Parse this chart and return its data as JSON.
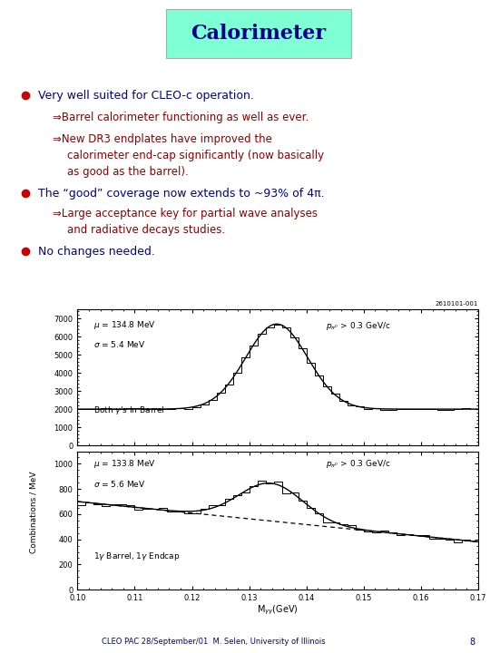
{
  "title": "Calorimeter",
  "title_color": "#00008B",
  "title_bg_color": "#7FFFD4",
  "bg_color": "#FFFFFF",
  "bullet_color": "#CC0000",
  "bullet1_text": "Very well suited for CLEO-c operation.",
  "bullet1_color": "#00008B",
  "sub1a_text": "⇒Barrel calorimeter functioning as well as ever.",
  "sub1a_color": "#8B0000",
  "sub1b_line1": "⇒New DR3 endplates have improved the",
  "sub1b_line2": "calorimeter end-cap significantly (now basically",
  "sub1b_line3": "as good as the barrel).",
  "sub1b_color": "#8B0000",
  "bullet2_text": "The “good” coverage now extends to ~93% of 4π.",
  "bullet2_color": "#00008B",
  "sub2a_line1": "⇒Large acceptance key for partial wave analyses",
  "sub2a_line2": "and radiative decays studies.",
  "sub2a_color": "#8B0000",
  "bullet3_text": "No changes needed.",
  "bullet3_color": "#00008B",
  "footer_text": "CLEO PAC 28/September/01  M. Selen, University of Illinois",
  "footer_page": "8",
  "footer_color": "#00008B",
  "plot_label_id": "2610101-001",
  "title_fontsize": 16,
  "bullet_fontsize": 9,
  "sub_fontsize": 8.5,
  "footer_fontsize": 6,
  "bullet_markersize": 6
}
